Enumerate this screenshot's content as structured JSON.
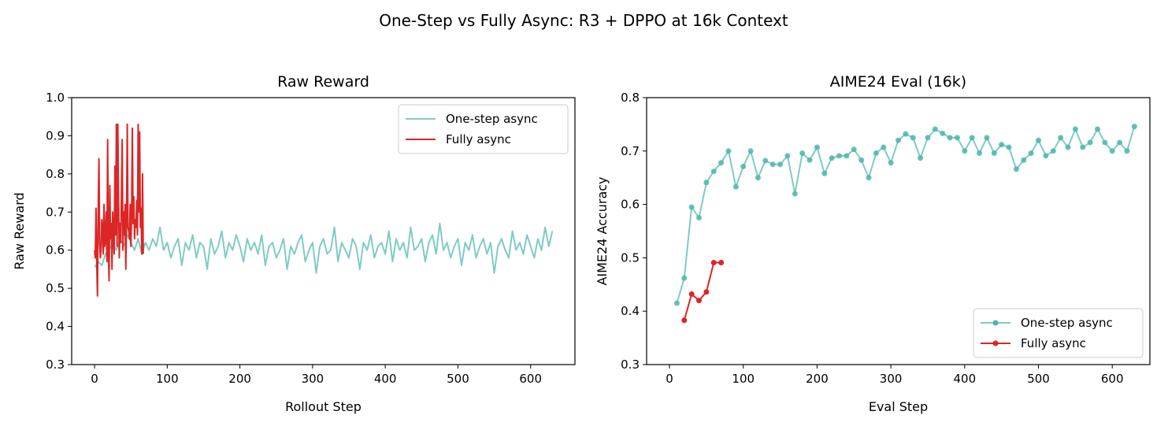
{
  "suptitle": "One-Step vs Fully Async: R3 + DPPO at 16k Context",
  "colors": {
    "one_step": "#80cbc4",
    "one_step_marker": "#4db6ac",
    "fully": "#dc2626"
  },
  "chart_data": [
    {
      "type": "line",
      "title": "Raw Reward",
      "xlabel": "Rollout Step",
      "ylabel": "Raw Reward",
      "xlim": [
        -31.5,
        661
      ],
      "ylim": [
        0.3,
        1.0
      ],
      "xticks": [
        0,
        100,
        200,
        300,
        400,
        500,
        600
      ],
      "yticks": [
        0.3,
        0.4,
        0.5,
        0.6,
        0.7,
        0.8,
        0.9,
        1.0
      ],
      "legend": "top-right",
      "grid": false,
      "series": [
        {
          "name": "One-step async",
          "x_start": 0,
          "x_step": 5,
          "values": [
            0.555,
            0.57,
            0.56,
            0.59,
            0.6,
            0.62,
            0.6,
            0.63,
            0.61,
            0.64,
            0.62,
            0.6,
            0.63,
            0.59,
            0.62,
            0.6,
            0.63,
            0.61,
            0.66,
            0.6,
            0.62,
            0.58,
            0.61,
            0.63,
            0.56,
            0.62,
            0.6,
            0.64,
            0.58,
            0.62,
            0.61,
            0.55,
            0.63,
            0.59,
            0.61,
            0.65,
            0.58,
            0.62,
            0.6,
            0.64,
            0.61,
            0.57,
            0.63,
            0.6,
            0.62,
            0.59,
            0.64,
            0.56,
            0.61,
            0.62,
            0.58,
            0.6,
            0.63,
            0.55,
            0.61,
            0.59,
            0.62,
            0.64,
            0.57,
            0.6,
            0.62,
            0.54,
            0.61,
            0.63,
            0.59,
            0.6,
            0.66,
            0.57,
            0.62,
            0.6,
            0.58,
            0.63,
            0.61,
            0.55,
            0.62,
            0.6,
            0.64,
            0.58,
            0.61,
            0.62,
            0.59,
            0.65,
            0.57,
            0.63,
            0.6,
            0.62,
            0.58,
            0.66,
            0.6,
            0.61,
            0.63,
            0.57,
            0.62,
            0.64,
            0.59,
            0.67,
            0.6,
            0.62,
            0.58,
            0.61,
            0.63,
            0.56,
            0.62,
            0.6,
            0.64,
            0.58,
            0.61,
            0.63,
            0.59,
            0.62,
            0.54,
            0.61,
            0.63,
            0.6,
            0.58,
            0.65,
            0.6,
            0.62,
            0.59,
            0.64,
            0.61,
            0.58,
            0.63,
            0.6,
            0.66,
            0.61,
            0.65
          ]
        },
        {
          "name": "Fully async",
          "x_start": 0,
          "x_step": 1,
          "values": [
            0.6,
            0.58,
            0.71,
            0.57,
            0.48,
            0.7,
            0.84,
            0.62,
            0.58,
            0.6,
            0.68,
            0.66,
            0.59,
            0.72,
            0.61,
            0.63,
            0.7,
            0.57,
            0.89,
            0.6,
            0.52,
            0.77,
            0.63,
            0.67,
            0.55,
            0.7,
            0.63,
            0.59,
            0.82,
            0.64,
            0.93,
            0.61,
            0.93,
            0.73,
            0.58,
            0.67,
            0.62,
            0.74,
            0.89,
            0.6,
            0.7,
            0.64,
            0.72,
            0.55,
            0.68,
            0.93,
            0.66,
            0.65,
            0.63,
            0.72,
            0.61,
            0.7,
            0.92,
            0.67,
            0.74,
            0.63,
            0.68,
            0.66,
            0.73,
            0.64,
            0.93,
            0.7,
            0.91,
            0.66,
            0.71,
            0.59,
            0.8,
            0.59
          ]
        }
      ]
    },
    {
      "type": "line",
      "title": "AIME24 Eval (16k)",
      "xlabel": "Eval Step",
      "ylabel": "AIME24 Accuracy",
      "xlim": [
        -31,
        651
      ],
      "ylim": [
        0.3,
        0.8
      ],
      "xticks": [
        0,
        100,
        200,
        300,
        400,
        500,
        600
      ],
      "yticks": [
        0.3,
        0.4,
        0.5,
        0.6,
        0.7,
        0.8
      ],
      "legend": "bottom-right",
      "grid": false,
      "markers": true,
      "series": [
        {
          "name": "One-step async",
          "x_start": 10,
          "x_step": 10,
          "values": [
            0.415,
            0.462,
            0.595,
            0.575,
            0.641,
            0.662,
            0.678,
            0.7,
            0.633,
            0.671,
            0.7,
            0.65,
            0.682,
            0.675,
            0.675,
            0.691,
            0.62,
            0.696,
            0.683,
            0.707,
            0.658,
            0.687,
            0.691,
            0.691,
            0.703,
            0.683,
            0.65,
            0.696,
            0.707,
            0.678,
            0.72,
            0.732,
            0.725,
            0.687,
            0.725,
            0.741,
            0.733,
            0.725,
            0.725,
            0.7,
            0.725,
            0.696,
            0.725,
            0.696,
            0.712,
            0.707,
            0.666,
            0.683,
            0.696,
            0.72,
            0.691,
            0.7,
            0.725,
            0.707,
            0.741,
            0.707,
            0.716,
            0.741,
            0.716,
            0.7,
            0.716,
            0.7,
            0.746
          ]
        },
        {
          "name": "Fully async",
          "x_start": 20,
          "x_step": 10,
          "values": [
            0.383,
            0.432,
            0.42,
            0.436,
            0.491,
            0.491
          ]
        }
      ]
    }
  ]
}
